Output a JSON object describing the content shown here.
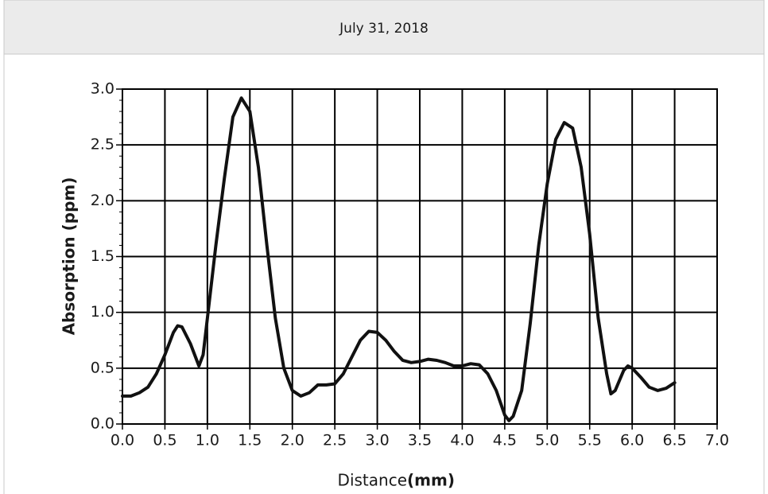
{
  "chart_data": {
    "type": "line",
    "title": "July 31, 2018",
    "xlabel": "Distance",
    "xlabel_unit": "(mm)",
    "ylabel": "Absorption (ppm)",
    "color": "#111111",
    "x": [
      0.0,
      0.1,
      0.2,
      0.3,
      0.4,
      0.5,
      0.6,
      0.65,
      0.7,
      0.8,
      0.9,
      0.95,
      1.0,
      1.1,
      1.2,
      1.3,
      1.4,
      1.5,
      1.6,
      1.7,
      1.8,
      1.9,
      2.0,
      2.1,
      2.2,
      2.3,
      2.4,
      2.5,
      2.6,
      2.7,
      2.8,
      2.9,
      3.0,
      3.1,
      3.2,
      3.3,
      3.4,
      3.5,
      3.6,
      3.7,
      3.8,
      3.9,
      4.0,
      4.1,
      4.2,
      4.3,
      4.4,
      4.5,
      4.55,
      4.6,
      4.7,
      4.8,
      4.9,
      5.0,
      5.1,
      5.2,
      5.3,
      5.4,
      5.5,
      5.6,
      5.7,
      5.75,
      5.8,
      5.9,
      5.95,
      6.0,
      6.1,
      6.2,
      6.3,
      6.4,
      6.5
    ],
    "values": [
      0.25,
      0.25,
      0.28,
      0.33,
      0.45,
      0.62,
      0.82,
      0.88,
      0.87,
      0.72,
      0.52,
      0.62,
      0.95,
      1.6,
      2.2,
      2.75,
      2.92,
      2.8,
      2.3,
      1.6,
      0.95,
      0.5,
      0.3,
      0.25,
      0.28,
      0.35,
      0.35,
      0.36,
      0.45,
      0.6,
      0.75,
      0.83,
      0.82,
      0.75,
      0.65,
      0.57,
      0.55,
      0.56,
      0.58,
      0.57,
      0.55,
      0.52,
      0.52,
      0.54,
      0.53,
      0.45,
      0.3,
      0.08,
      0.03,
      0.07,
      0.3,
      0.9,
      1.6,
      2.15,
      2.55,
      2.7,
      2.65,
      2.3,
      1.7,
      0.95,
      0.45,
      0.27,
      0.3,
      0.48,
      0.52,
      0.5,
      0.42,
      0.33,
      0.3,
      0.32,
      0.37
    ],
    "xlim": [
      0,
      7
    ],
    "xticks": [
      {
        "value": 0,
        "label": "0.0"
      },
      0.5,
      {
        "value": 1,
        "label": "1.0"
      },
      1.5,
      {
        "value": 2,
        "label": "2.0"
      },
      2.5,
      {
        "value": 3,
        "label": "3.0"
      },
      3.5,
      {
        "value": 4,
        "label": "4.0"
      },
      4.5,
      {
        "value": 5,
        "label": "5.0"
      },
      5.5,
      {
        "value": 6,
        "label": "6.0"
      },
      6.5,
      {
        "value": 7,
        "label": "7.0"
      }
    ],
    "ylim": [
      0,
      3
    ],
    "yticks": [
      {
        "value": 0,
        "label": "0.0"
      },
      0.5,
      {
        "value": 1,
        "label": "1.0"
      },
      1.5,
      {
        "value": 2,
        "label": "2.0"
      },
      2.5,
      {
        "value": 3,
        "label": "3.0"
      }
    ],
    "yminorticks": [
      0.1,
      0.2,
      0.3,
      0.4,
      0.6,
      0.7,
      0.8,
      0.9,
      1.1,
      1.2,
      1.3,
      1.4,
      1.6,
      1.7,
      1.8,
      1.9,
      2.1,
      2.2,
      2.3,
      2.4,
      2.6,
      2.7,
      2.8,
      2.9
    ],
    "grid": true
  }
}
